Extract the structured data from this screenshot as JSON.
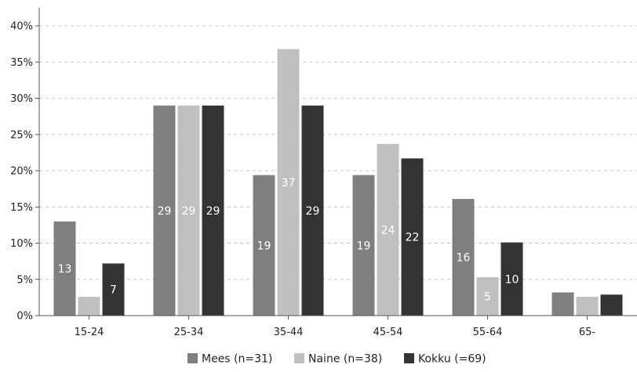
{
  "chart_data": {
    "type": "bar",
    "categories": [
      "15-24",
      "25-34",
      "35-44",
      "45-54",
      "55-64",
      "65-"
    ],
    "ylim": [
      0,
      40
    ],
    "y_ticks": [
      "0%",
      "5%",
      "10%",
      "15%",
      "20%",
      "25%",
      "30%",
      "35%",
      "40%"
    ],
    "y_tick_values": [
      0,
      5,
      10,
      15,
      20,
      25,
      30,
      35,
      40
    ],
    "grid": true,
    "legend_position": "bottom",
    "series": [
      {
        "name": "Mees (n=31)",
        "color": "#7f7f7f",
        "values": [
          13,
          29,
          19.4,
          19.4,
          16.1,
          3.2
        ],
        "labels": [
          "13",
          "29",
          "19",
          "19",
          "16",
          ""
        ]
      },
      {
        "name": "Naine (n=38)",
        "color": "#c0c0c0",
        "values": [
          2.6,
          29,
          36.8,
          23.7,
          5.3,
          2.6
        ],
        "labels": [
          "",
          "29",
          "37",
          "24",
          "5",
          ""
        ]
      },
      {
        "name": "Kokku (=69)",
        "color": "#333333",
        "values": [
          7.2,
          29,
          29,
          21.7,
          10.1,
          2.9
        ],
        "labels": [
          "7",
          "29",
          "29",
          "22",
          "10",
          ""
        ]
      }
    ]
  }
}
